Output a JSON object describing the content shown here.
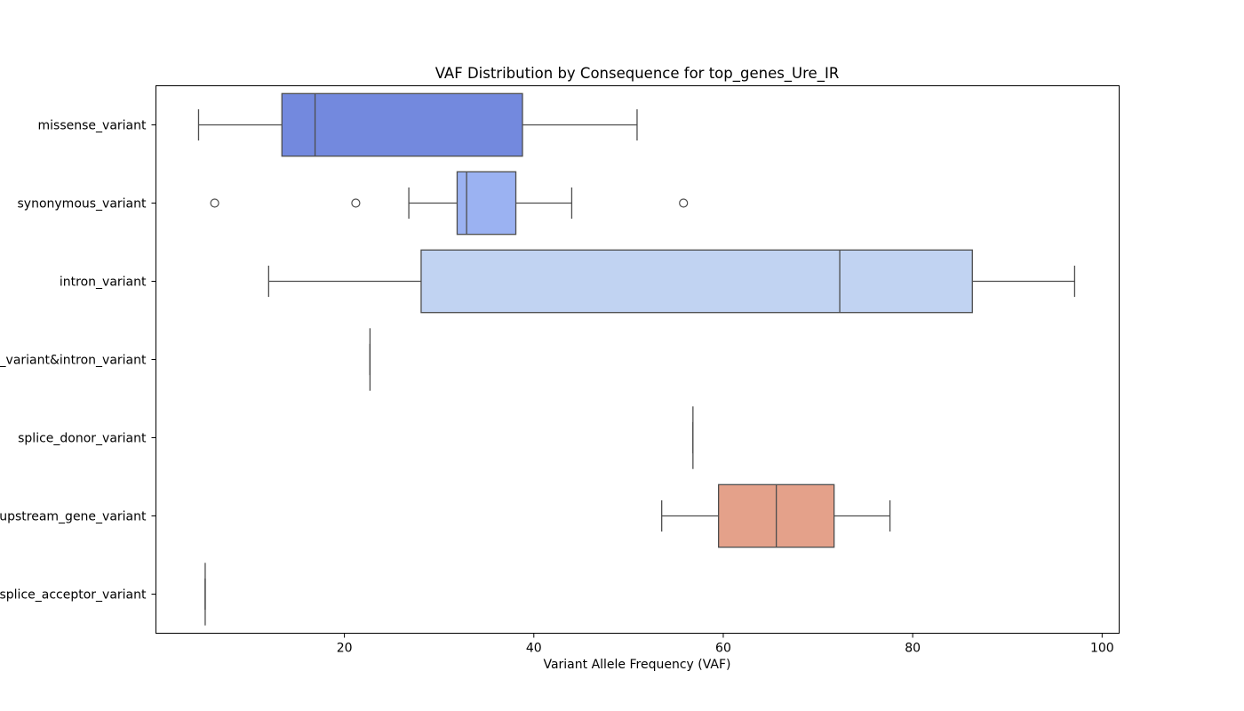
{
  "chart_data": {
    "type": "box",
    "orientation": "horizontal",
    "title": "VAF Distribution by Consequence for top_genes_Ure_IR",
    "xlabel": "Variant Allele Frequency (VAF)",
    "ylabel": "",
    "xlim": [
      0.1,
      101.8
    ],
    "xticks": [
      20,
      40,
      60,
      80,
      100
    ],
    "grid": false,
    "legend": "none",
    "line_color": "#4d4d4d",
    "categories": [
      "missense_variant",
      "synonymous_variant",
      "intron_variant",
      "splice_region_variant&intron_variant",
      "splice_donor_variant",
      "upstream_gene_variant",
      "splice_acceptor_variant"
    ],
    "boxes": [
      {
        "category": "missense_variant",
        "whisker_low": 4.6,
        "q1": 13.4,
        "median": 16.9,
        "q3": 38.8,
        "whisker_high": 50.9,
        "outliers": [],
        "color": "#7389de"
      },
      {
        "category": "synonymous_variant",
        "whisker_low": 26.8,
        "q1": 31.9,
        "median": 32.9,
        "q3": 38.1,
        "whisker_high": 44.0,
        "outliers": [
          6.3,
          21.2,
          55.8
        ],
        "color": "#9bb2f2"
      },
      {
        "category": "intron_variant",
        "whisker_low": 12.0,
        "q1": 28.1,
        "median": 72.3,
        "q3": 86.3,
        "whisker_high": 97.1,
        "outliers": [],
        "color": "#c1d3f2"
      },
      {
        "category": "splice_region_variant&intron_variant",
        "whisker_low": 22.7,
        "q1": 22.7,
        "median": 22.7,
        "q3": 22.7,
        "whisker_high": 22.7,
        "outliers": [],
        "color": "#e0dad6"
      },
      {
        "category": "splice_donor_variant",
        "whisker_low": 56.8,
        "q1": 56.8,
        "median": 56.8,
        "q3": 56.8,
        "whisker_high": 56.8,
        "outliers": [],
        "color": "#f2c9b5"
      },
      {
        "category": "upstream_gene_variant",
        "whisker_low": 53.5,
        "q1": 59.5,
        "median": 65.6,
        "q3": 71.7,
        "whisker_high": 77.6,
        "outliers": [],
        "color": "#e4a18a"
      },
      {
        "category": "splice_acceptor_variant",
        "whisker_low": 5.3,
        "q1": 5.3,
        "median": 5.3,
        "q3": 5.3,
        "whisker_high": 5.3,
        "outliers": [],
        "color": "#cc6651"
      }
    ]
  }
}
